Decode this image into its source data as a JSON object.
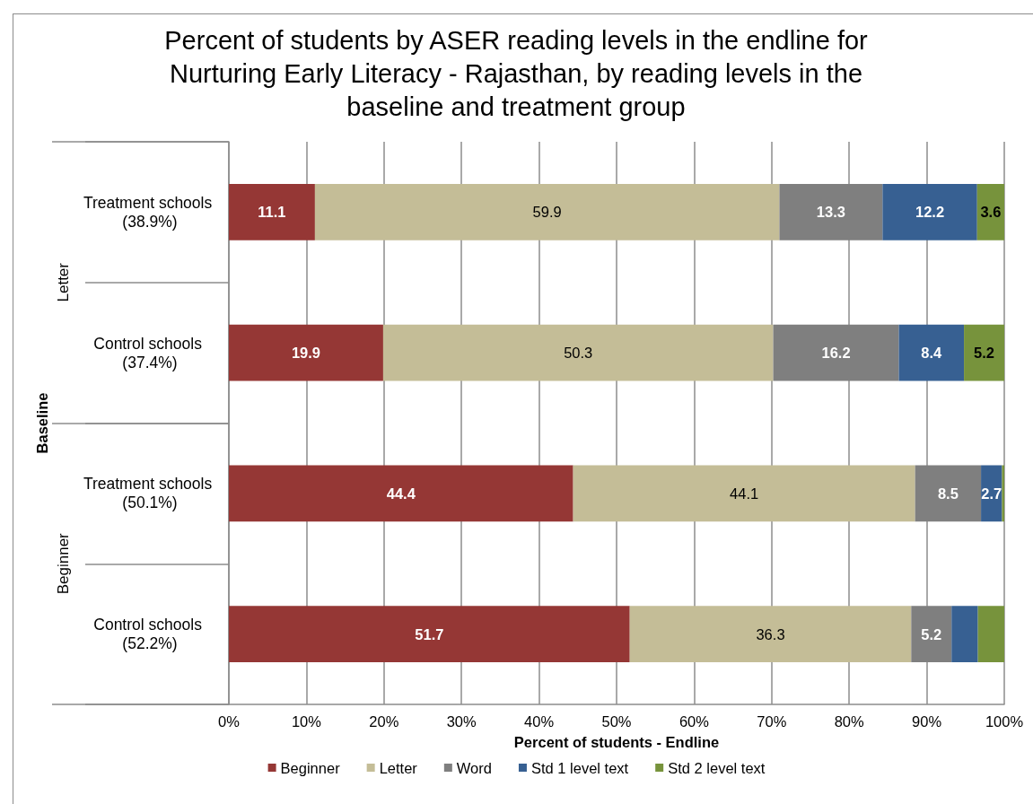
{
  "chart_data": {
    "type": "bar",
    "title": "Percent of students by ASER reading levels in the endline for Nurturing Early Literacy - Rajasthan, by reading levels in the baseline and treatment group",
    "orientation": "horizontal",
    "stacked": true,
    "categories": [
      "Treatment schools (38.9%)",
      "Control schools (37.4%)",
      "Treatment schools (50.1%)",
      "Control schools (52.2%)"
    ],
    "annotations": [
      "Letter",
      "Beginner"
    ],
    "xlabel": "Percent of students - Endline",
    "ylabel": "Baseline",
    "xlim": [
      0,
      100
    ],
    "xticks": [
      {
        "value": 0,
        "label": "0%"
      },
      {
        "value": 10,
        "label": "10%"
      },
      {
        "value": 20,
        "label": "20%"
      },
      {
        "value": 30,
        "label": "30%"
      },
      {
        "value": 40,
        "label": "40%"
      },
      {
        "value": 50,
        "label": "50%"
      },
      {
        "value": 60,
        "label": "60%"
      },
      {
        "value": 70,
        "label": "70%"
      },
      {
        "value": 80,
        "label": "80%"
      },
      {
        "value": 90,
        "label": "90%"
      },
      {
        "value": 100,
        "label": "100%"
      }
    ],
    "grid": "x",
    "legend": "bottom",
    "series": [
      {
        "name": "Beginner",
        "color": "#953735",
        "values": [
          11.1,
          19.9,
          44.4,
          51.7
        ],
        "value_labels": [
          "11.1",
          "19.9",
          "44.4",
          "51.7"
        ]
      },
      {
        "name": "Letter",
        "color": "#c4bd97",
        "values": [
          59.9,
          50.3,
          44.1,
          36.3
        ],
        "value_labels": [
          "59.9",
          "50.3",
          "44.1",
          "36.3"
        ]
      },
      {
        "name": "Word",
        "color": "#7f7f7f",
        "values": [
          13.3,
          16.2,
          8.5,
          5.2
        ],
        "value_labels": [
          "13.3",
          "16.2",
          "8.5",
          "5.2"
        ]
      },
      {
        "name": "Std 1 level text",
        "color": "#376092",
        "values": [
          12.2,
          8.4,
          2.7,
          3.4
        ],
        "value_labels": [
          "12.2",
          "8.4",
          "2.7",
          null
        ]
      },
      {
        "name": "Std 2 level text",
        "color": "#77933c",
        "values": [
          3.6,
          5.2,
          0.3,
          3.4
        ],
        "value_labels": [
          "3.6",
          "5.2",
          null,
          null
        ]
      }
    ]
  }
}
